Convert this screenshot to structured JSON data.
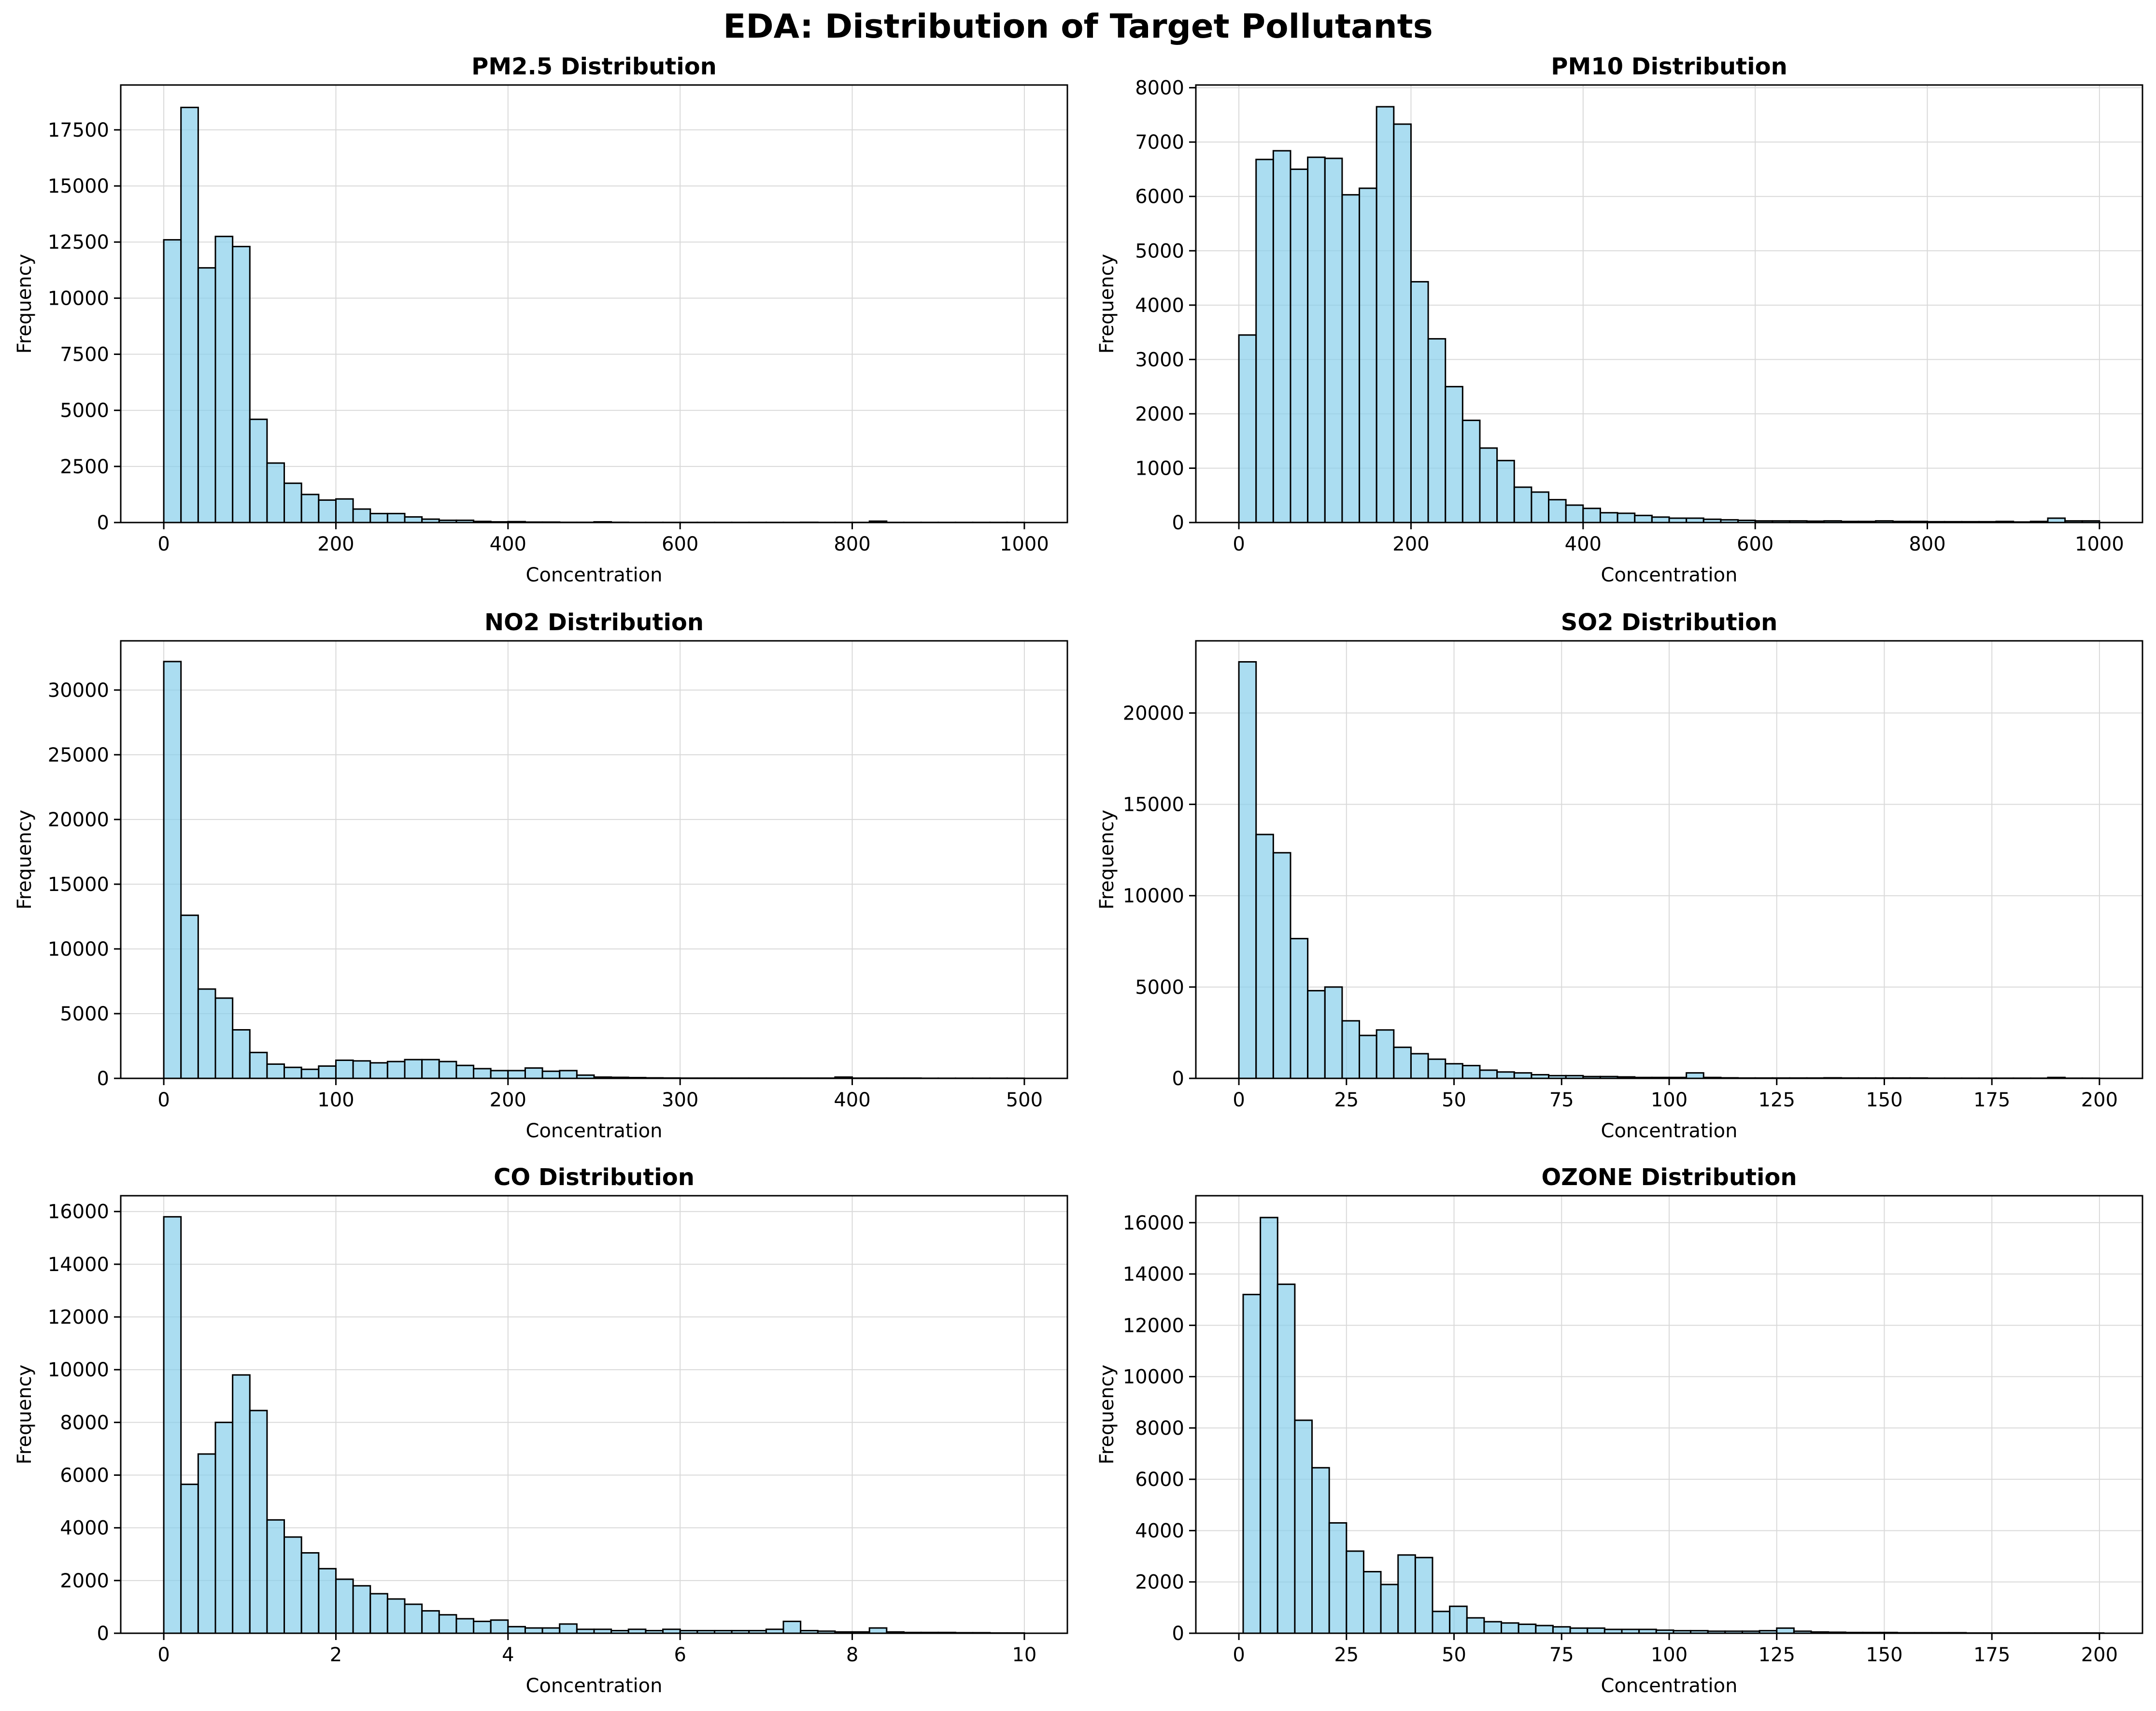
{
  "figure_title": "EDA: Distribution of Target Pollutants",
  "colors": {
    "bar_fill": "#87CEEB",
    "bar_edge": "#000000",
    "grid": "#d9d9d9"
  },
  "chart_data": [
    {
      "type": "bar",
      "title": "PM2.5 Distribution",
      "xlabel": "Concentration",
      "ylabel": "Frequency",
      "xlim": [
        -50,
        1050
      ],
      "ylim": [
        0,
        19500
      ],
      "xticks": [
        0,
        200,
        400,
        600,
        800,
        1000
      ],
      "xtick_labels": [
        "0",
        "200",
        "400",
        "600",
        "800",
        "1000"
      ],
      "yticks": [
        0,
        2500,
        5000,
        7500,
        10000,
        12500,
        15000,
        17500
      ],
      "ytick_labels": [
        "0",
        "2500",
        "5000",
        "7500",
        "10000",
        "12500",
        "15000",
        "17500"
      ],
      "bins": {
        "start": 0,
        "width": 20
      },
      "grid": true,
      "values": [
        12600,
        18500,
        11350,
        12750,
        12300,
        4600,
        2650,
        1750,
        1250,
        1000,
        1050,
        600,
        400,
        400,
        250,
        150,
        100,
        100,
        50,
        30,
        40,
        20,
        20,
        10,
        10,
        30,
        10,
        5,
        5,
        5,
        5,
        5,
        5,
        5,
        5,
        5,
        5,
        10,
        5,
        5,
        5,
        60,
        5,
        5,
        5,
        5,
        5,
        5,
        5,
        5
      ]
    },
    {
      "type": "bar",
      "title": "PM10 Distribution",
      "xlabel": "Concentration",
      "ylabel": "Frequency",
      "xlim": [
        -50,
        1050
      ],
      "ylim": [
        0,
        8050
      ],
      "xticks": [
        0,
        200,
        400,
        600,
        800,
        1000
      ],
      "xtick_labels": [
        "0",
        "200",
        "400",
        "600",
        "800",
        "1000"
      ],
      "yticks": [
        0,
        1000,
        2000,
        3000,
        4000,
        5000,
        6000,
        7000,
        8000
      ],
      "ytick_labels": [
        "0",
        "1000",
        "2000",
        "3000",
        "4000",
        "5000",
        "6000",
        "7000",
        "8000"
      ],
      "bins": {
        "start": 0,
        "width": 20
      },
      "grid": true,
      "values": [
        3450,
        6680,
        6840,
        6500,
        6720,
        6700,
        6030,
        6150,
        7650,
        7330,
        4430,
        3380,
        2500,
        1880,
        1370,
        1140,
        650,
        560,
        420,
        320,
        260,
        180,
        170,
        130,
        100,
        80,
        80,
        60,
        50,
        40,
        30,
        30,
        30,
        25,
        30,
        20,
        20,
        30,
        20,
        20,
        15,
        15,
        15,
        15,
        20,
        10,
        20,
        80,
        30,
        30
      ]
    },
    {
      "type": "bar",
      "title": "NO2 Distribution",
      "xlabel": "Concentration",
      "ylabel": "Frequency",
      "xlim": [
        -25,
        525
      ],
      "ylim": [
        0,
        33800
      ],
      "xticks": [
        0,
        100,
        200,
        300,
        400,
        500
      ],
      "xtick_labels": [
        "0",
        "100",
        "200",
        "300",
        "400",
        "500"
      ],
      "yticks": [
        0,
        5000,
        10000,
        15000,
        20000,
        25000,
        30000
      ],
      "ytick_labels": [
        "0",
        "5000",
        "10000",
        "15000",
        "20000",
        "25000",
        "30000"
      ],
      "bins": {
        "start": 0,
        "width": 10
      },
      "grid": true,
      "values": [
        32200,
        12600,
        6900,
        6200,
        3750,
        2000,
        1100,
        850,
        700,
        950,
        1400,
        1350,
        1200,
        1300,
        1450,
        1450,
        1300,
        1000,
        750,
        600,
        600,
        800,
        550,
        600,
        250,
        100,
        80,
        60,
        40,
        30,
        20,
        20,
        20,
        20,
        20,
        20,
        20,
        20,
        20,
        100,
        20,
        20,
        20,
        20,
        10,
        10,
        10,
        10,
        10,
        10
      ]
    },
    {
      "type": "bar",
      "title": "SO2 Distribution",
      "xlabel": "Concentration",
      "ylabel": "Frequency",
      "xlim": [
        -10,
        210
      ],
      "ylim": [
        0,
        23950
      ],
      "xticks": [
        0,
        25,
        50,
        75,
        100,
        125,
        150,
        175,
        200
      ],
      "xtick_labels": [
        "0",
        "25",
        "50",
        "75",
        "100",
        "125",
        "150",
        "175",
        "200"
      ],
      "yticks": [
        0,
        5000,
        10000,
        15000,
        20000
      ],
      "ytick_labels": [
        "0",
        "5000",
        "10000",
        "15000",
        "20000"
      ],
      "bins": {
        "start": 0,
        "width": 4
      },
      "grid": true,
      "values": [
        22800,
        13350,
        12350,
        7650,
        4800,
        5000,
        3150,
        2350,
        2650,
        1700,
        1350,
        1050,
        800,
        700,
        450,
        350,
        300,
        200,
        150,
        150,
        100,
        100,
        80,
        50,
        50,
        50,
        300,
        50,
        30,
        20,
        20,
        20,
        20,
        20,
        30,
        20,
        20,
        20,
        20,
        20,
        10,
        10,
        10,
        10,
        10,
        10,
        10,
        50,
        10,
        10
      ]
    },
    {
      "type": "bar",
      "title": "CO Distribution",
      "xlabel": "Concentration",
      "ylabel": "Frequency",
      "xlim": [
        -0.5,
        10.5
      ],
      "ylim": [
        0,
        16600
      ],
      "xticks": [
        0,
        2,
        4,
        6,
        8,
        10
      ],
      "xtick_labels": [
        "0",
        "2",
        "4",
        "6",
        "8",
        "10"
      ],
      "yticks": [
        0,
        2000,
        4000,
        6000,
        8000,
        10000,
        12000,
        14000,
        16000
      ],
      "ytick_labels": [
        "0",
        "2000",
        "4000",
        "6000",
        "8000",
        "10000",
        "12000",
        "14000",
        "16000"
      ],
      "bins": {
        "start": 0,
        "width": 0.2
      },
      "grid": true,
      "values": [
        15800,
        5650,
        6800,
        8000,
        9800,
        8450,
        4300,
        3650,
        3050,
        2450,
        2050,
        1800,
        1500,
        1300,
        1100,
        850,
        700,
        550,
        450,
        500,
        250,
        200,
        200,
        350,
        150,
        150,
        100,
        150,
        100,
        150,
        100,
        100,
        100,
        100,
        100,
        150,
        450,
        100,
        80,
        50,
        50,
        200,
        50,
        30,
        30,
        30,
        20,
        20,
        10,
        10
      ]
    },
    {
      "type": "bar",
      "title": "OZONE Distribution",
      "xlabel": "Concentration",
      "ylabel": "Frequency",
      "xlim": [
        -10,
        210
      ],
      "ylim": [
        0,
        17050
      ],
      "xticks": [
        0,
        25,
        50,
        75,
        100,
        125,
        150,
        175,
        200
      ],
      "xtick_labels": [
        "0",
        "25",
        "50",
        "75",
        "100",
        "125",
        "150",
        "175",
        "200"
      ],
      "yticks": [
        0,
        2000,
        4000,
        6000,
        8000,
        10000,
        12000,
        14000,
        16000
      ],
      "ytick_labels": [
        "0",
        "2000",
        "4000",
        "6000",
        "8000",
        "10000",
        "12000",
        "14000",
        "16000"
      ],
      "bins": {
        "start": 1,
        "width": 4
      },
      "grid": true,
      "values": [
        13200,
        16200,
        13600,
        8300,
        6450,
        4300,
        3200,
        2400,
        1900,
        3050,
        2950,
        850,
        1050,
        600,
        450,
        400,
        350,
        300,
        250,
        200,
        200,
        150,
        150,
        150,
        120,
        100,
        100,
        80,
        80,
        80,
        100,
        200,
        80,
        50,
        40,
        30,
        30,
        30,
        20,
        20,
        20,
        20,
        10,
        10,
        10,
        10,
        10,
        10,
        10,
        10
      ]
    }
  ]
}
